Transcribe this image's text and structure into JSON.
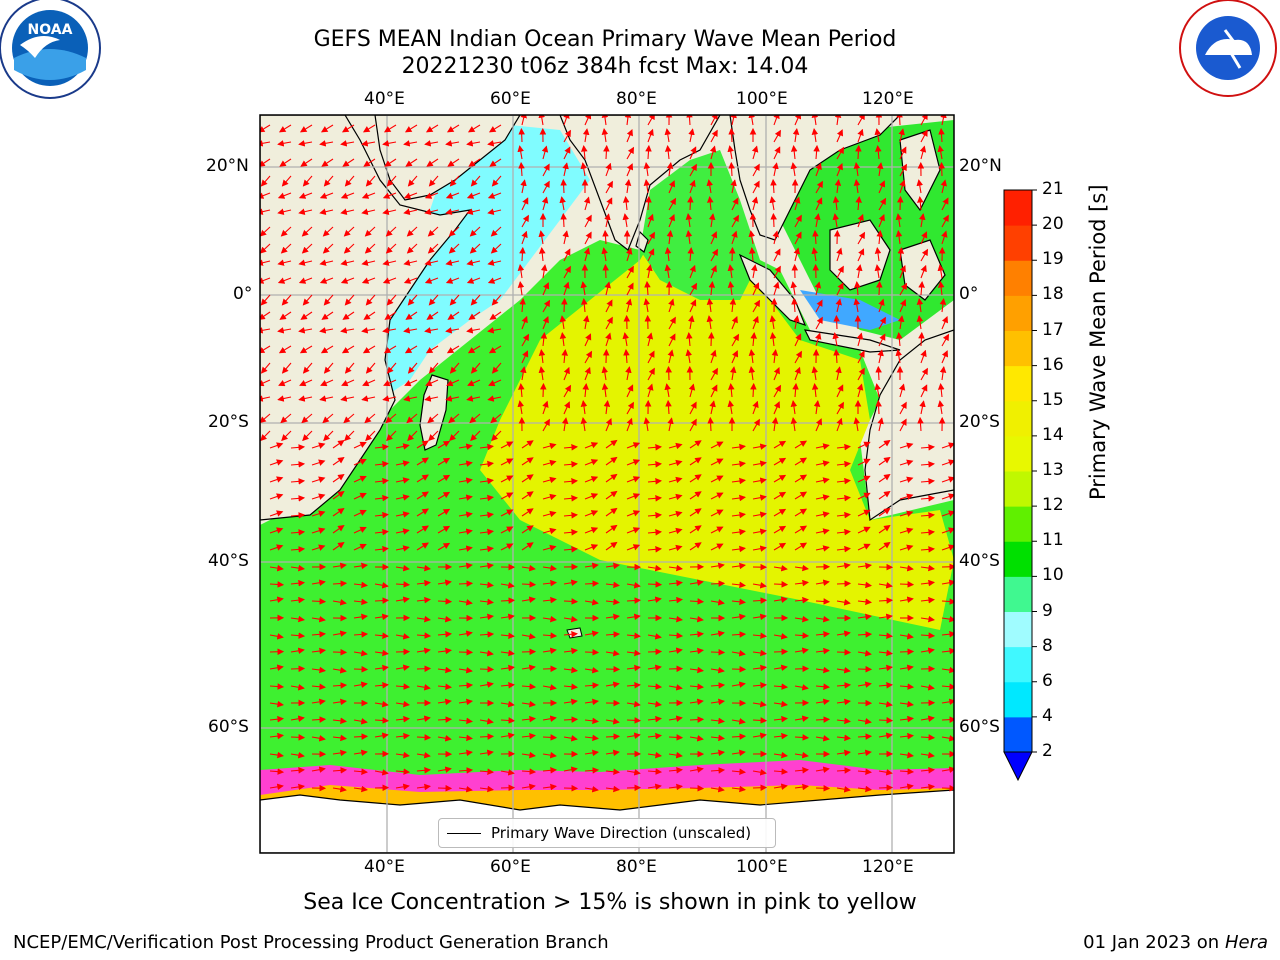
{
  "title_line1": "GEFS MEAN Indian Ocean Primary Wave Mean Period",
  "title_line2": "20221230 t06z 384h fcst   Max: 14.04",
  "lon_ticks": [
    "40°E",
    "60°E",
    "80°E",
    "100°E",
    "120°E"
  ],
  "lat_ticks": [
    "20°N",
    "0°",
    "20°S",
    "40°S",
    "60°S"
  ],
  "colorbar": {
    "label": "Primary Wave Mean Period [s]",
    "ticks": [
      "2",
      "4",
      "6",
      "8",
      "9",
      "10",
      "11",
      "12",
      "13",
      "14",
      "15",
      "16",
      "17",
      "18",
      "19",
      "20",
      "21"
    ],
    "colors": [
      "#0058ff",
      "#00e8ff",
      "#40f8ff",
      "#a0fcff",
      "#40f890",
      "#00e000",
      "#60f000",
      "#c0f800",
      "#e8f800",
      "#f0f000",
      "#ffe800",
      "#ffc000",
      "#ffa000",
      "#ff8000",
      "#ff4000",
      "#ff2000"
    ],
    "extend_color": "#0000ff"
  },
  "legend_label": "Primary Wave Direction (unscaled)",
  "sea_ice_note": "Sea Ice Concentration > 15% is shown in pink to yellow",
  "footer_left": "NCEP/EMC/Verification Post Processing Product Generation Branch",
  "footer_date": "01 Jan 2023 on ",
  "footer_machine": "Hera",
  "logos": {
    "left": "NOAA",
    "right": "NATIONAL WEATHER SERVICE"
  },
  "colors": {
    "land": "#f0eedc",
    "arrow": "#ff0000",
    "ice": "#ff40d0"
  }
}
